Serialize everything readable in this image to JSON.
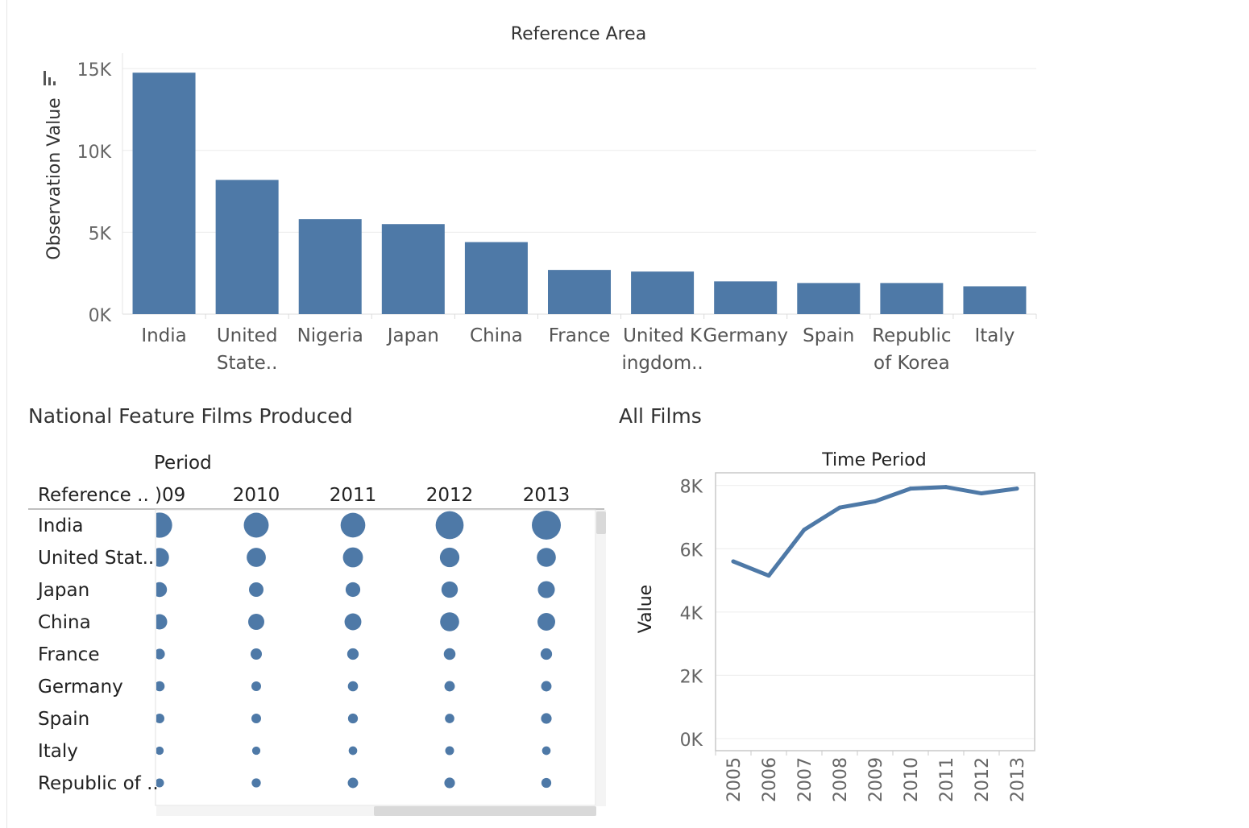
{
  "dashboard": {
    "sheet_titles": [
      "National Feature Films Produced",
      "All Films"
    ]
  },
  "chart_data": [
    {
      "type": "bar",
      "title": "Reference Area",
      "ylabel": "Observation Value",
      "xlabel": "",
      "categories": [
        [
          "India"
        ],
        [
          "United",
          "State.."
        ],
        [
          "Nigeria"
        ],
        [
          "Japan"
        ],
        [
          "China"
        ],
        [
          "France"
        ],
        [
          "United K",
          "ingdom.."
        ],
        [
          "Germany"
        ],
        [
          "Spain"
        ],
        [
          "Republic",
          "of Korea"
        ],
        [
          "Italy"
        ]
      ],
      "values": [
        14750,
        8200,
        5800,
        5500,
        4400,
        2700,
        2600,
        2000,
        1900,
        1900,
        1700
      ],
      "ylim": [
        0,
        15500
      ],
      "yticks": [
        0,
        5000,
        10000,
        15000
      ],
      "ytick_labels": [
        "0K",
        "5K",
        "10K",
        "15K"
      ],
      "grid": true,
      "color": "#4e79a7"
    },
    {
      "type": "scatter",
      "title": "Period",
      "row_header": "Reference ..",
      "columns": [
        "'09",
        "2010",
        "2011",
        "2012",
        "2013"
      ],
      "column_labels": [
        ")09",
        "2010",
        "2011",
        "2012",
        "2013"
      ],
      "rows": [
        "India",
        "United Stat..",
        "Japan",
        "China",
        "France",
        "Germany",
        "Spain",
        "Italy",
        "Republic of .."
      ],
      "values": [
        [
          1300,
          1270,
          1250,
          1600,
          1720
        ],
        [
          730,
          750,
          820,
          780,
          740
        ],
        [
          450,
          430,
          440,
          550,
          590
        ],
        [
          480,
          530,
          580,
          740,
          640
        ],
        [
          230,
          260,
          270,
          280,
          270
        ],
        [
          210,
          190,
          210,
          220,
          220
        ],
        [
          190,
          190,
          200,
          180,
          230
        ],
        [
          140,
          140,
          150,
          160,
          150
        ],
        [
          160,
          170,
          220,
          230,
          200
        ]
      ],
      "color": "#4e79a7"
    },
    {
      "type": "line",
      "title": "Time Period",
      "ylabel": "Value",
      "x": [
        "2005",
        "2006",
        "2007",
        "2008",
        "2009",
        "2010",
        "2011",
        "2012",
        "2013"
      ],
      "values": [
        5600,
        5150,
        6600,
        7300,
        7500,
        7900,
        7950,
        7750,
        7900
      ],
      "ylim": [
        0,
        8400
      ],
      "yticks": [
        0,
        2000,
        4000,
        6000,
        8000
      ],
      "ytick_labels": [
        "0K",
        "2K",
        "4K",
        "6K",
        "8K"
      ],
      "grid": true,
      "color": "#4e79a7"
    }
  ]
}
